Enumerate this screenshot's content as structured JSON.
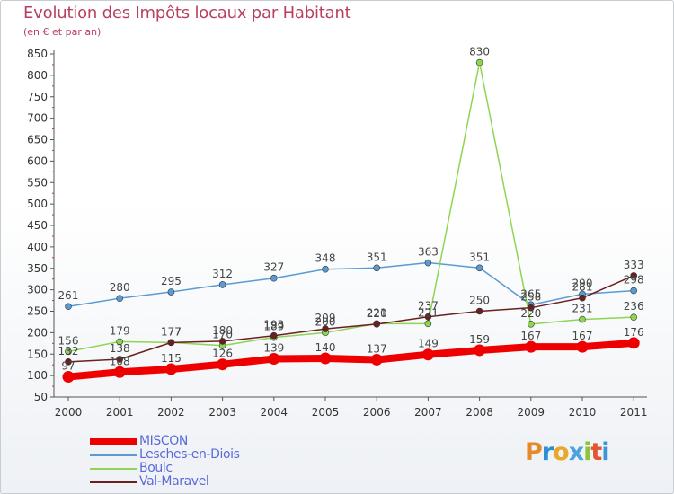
{
  "chart_data": {
    "type": "line",
    "title": "Evolution des Impôts locaux par Habitant",
    "subtitle": "(en € et par an)",
    "xlabel": "",
    "ylabel": "",
    "ylim": [
      50,
      850
    ],
    "yticks": [
      50,
      100,
      150,
      200,
      250,
      300,
      350,
      400,
      450,
      500,
      550,
      600,
      650,
      700,
      750,
      800,
      850
    ],
    "categories": [
      "2000",
      "2001",
      "2002",
      "2003",
      "2004",
      "2005",
      "2006",
      "2007",
      "2008",
      "2009",
      "2010",
      "2011"
    ],
    "series": [
      {
        "name": "MISCON",
        "color": "#ee0000",
        "values": [
          97,
          108,
          115,
          126,
          139,
          140,
          137,
          149,
          159,
          167,
          167,
          176
        ]
      },
      {
        "name": "Lesches-en-Diois",
        "color": "#5a9bd4",
        "values": [
          261,
          280,
          295,
          312,
          327,
          348,
          351,
          363,
          351,
          265,
          290,
          298
        ]
      },
      {
        "name": "Boulc",
        "color": "#8ed553",
        "values": [
          156,
          179,
          177,
          170,
          189,
          200,
          221,
          221,
          830,
          220,
          231,
          236
        ]
      },
      {
        "name": "Val-Maravel",
        "color": "#6b1f1f",
        "values": [
          132,
          138,
          177,
          180,
          193,
          209,
          220,
          237,
          250,
          258,
          281,
          333
        ]
      }
    ],
    "legend_position": "bottom-left",
    "grid": false
  },
  "branding": {
    "logo_letters": [
      "P",
      "r",
      "o",
      "x",
      "i",
      "t",
      "i"
    ]
  }
}
